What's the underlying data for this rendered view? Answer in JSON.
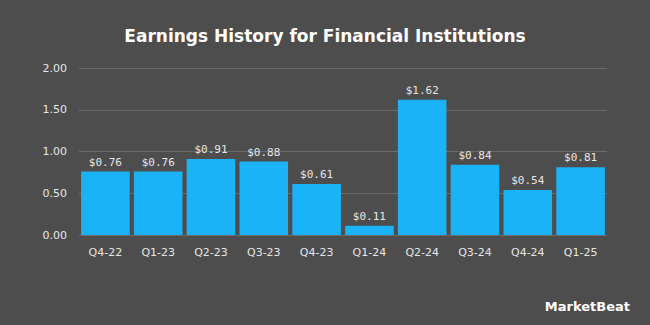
{
  "chart_data": {
    "type": "bar",
    "title": "Earnings History for Financial Institutions",
    "categories": [
      "Q4-22",
      "Q1-23",
      "Q2-23",
      "Q3-23",
      "Q4-23",
      "Q1-24",
      "Q2-24",
      "Q3-24",
      "Q4-24",
      "Q1-25"
    ],
    "values": [
      0.76,
      0.76,
      0.91,
      0.88,
      0.61,
      0.11,
      1.62,
      0.84,
      0.54,
      0.81
    ],
    "value_labels": [
      "$0.76",
      "$0.76",
      "$0.91",
      "$0.88",
      "$0.61",
      "$0.11",
      "$1.62",
      "$0.84",
      "$0.54",
      "$0.81"
    ],
    "color": "#1ab3f7",
    "ylim": [
      0,
      2
    ],
    "yticks": [
      {
        "value": 0,
        "label": "0.00"
      },
      {
        "value": 0.5,
        "label": "0.50"
      },
      {
        "value": 1,
        "label": "1.00"
      },
      {
        "value": 1.5,
        "label": "1.50"
      },
      {
        "value": 2,
        "label": "2.00"
      }
    ],
    "grid": true,
    "data_labels": true,
    "annotations": [
      "MarketBeat"
    ]
  }
}
